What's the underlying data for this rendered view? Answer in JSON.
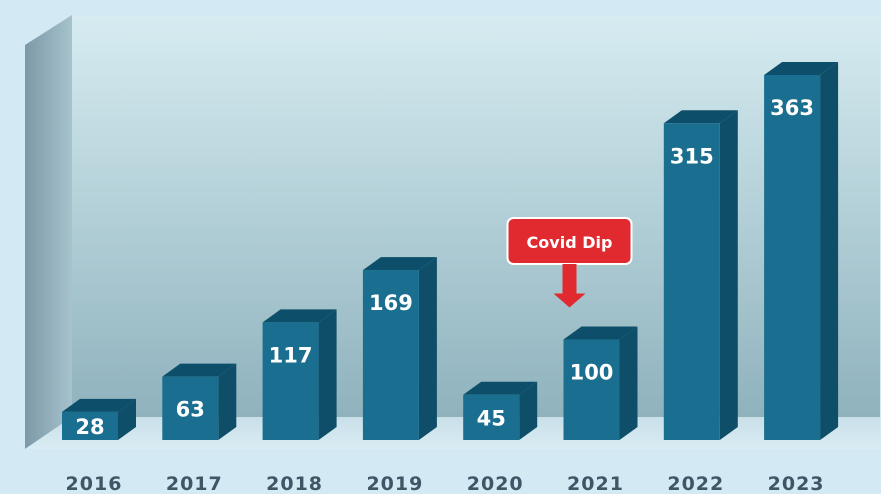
{
  "chart_data": {
    "type": "bar",
    "title": "",
    "xlabel": "",
    "ylabel": "",
    "categories": [
      "2016",
      "2017",
      "2018",
      "2019",
      "2020",
      "2021",
      "2022",
      "2023"
    ],
    "values": [
      28,
      63,
      117,
      169,
      45,
      100,
      315,
      363
    ],
    "data_labels": [
      "28",
      "63",
      "117",
      "169",
      "45",
      "100",
      "315",
      "363"
    ],
    "ylim": [
      0,
      363
    ],
    "grid": false,
    "legend": "none",
    "style": "3d-column",
    "annotations": [
      {
        "text": "Covid Dip",
        "points_to": "2021",
        "shape": "red callout box with downward arrow"
      }
    ],
    "colors": {
      "bar_front": "#1a6e8f",
      "bar_top": "#0d4f6a",
      "bar_side": "#0e4e68",
      "annotation": "#e02a2f",
      "label_text": "#3f5666"
    }
  }
}
